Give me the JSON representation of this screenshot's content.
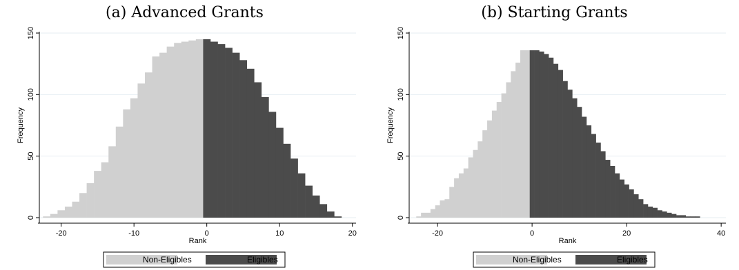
{
  "panels": [
    {
      "title": "(a) Advanced Grants",
      "chart_data": {
        "type": "bar",
        "title": "(a) Advanced Grants",
        "xlabel": "Rank",
        "ylabel": "Frequency",
        "xlim": [
          -23,
          20.5
        ],
        "ylim": [
          0,
          150
        ],
        "xticks": [
          -20,
          -10,
          0,
          10,
          20
        ],
        "yticks": [
          0,
          50,
          100,
          150
        ],
        "grid": true,
        "legend": "bottom",
        "bin_start": -22,
        "bin_width": 1,
        "split_at": 0,
        "series": [
          {
            "name": "Non-Eligibles",
            "color": "#d0d0d0",
            "x": [
              -22,
              -21,
              -20,
              -19,
              -18,
              -17,
              -16,
              -15,
              -14,
              -13,
              -12,
              -11,
              -10,
              -9,
              -8,
              -7,
              -6,
              -5,
              -4,
              -3,
              -2,
              -1
            ],
            "values": [
              1,
              3,
              6,
              9,
              13,
              20,
              28,
              38,
              45,
              58,
              74,
              88,
              97,
              109,
              118,
              131,
              134,
              139,
              142,
              143,
              144,
              145
            ]
          },
          {
            "name": "Eligibles",
            "color": "#4b4b4b",
            "x": [
              0,
              1,
              2,
              3,
              4,
              5,
              6,
              7,
              8,
              9,
              10,
              11,
              12,
              13,
              14,
              15,
              16,
              17,
              18
            ],
            "values": [
              145,
              143,
              141,
              138,
              134,
              128,
              121,
              110,
              98,
              86,
              73,
              60,
              48,
              36,
              26,
              18,
              11,
              5,
              1
            ]
          }
        ]
      }
    },
    {
      "title": "(b) Starting Grants",
      "chart_data": {
        "type": "bar",
        "title": "(b) Starting Grants",
        "xlabel": "Rank",
        "ylabel": "Frequency",
        "xlim": [
          -26,
          41
        ],
        "ylim": [
          0,
          150
        ],
        "xticks": [
          -20,
          0,
          20,
          40
        ],
        "yticks": [
          0,
          50,
          100,
          150
        ],
        "grid": true,
        "legend": "bottom",
        "bin_start": -24,
        "bin_width": 1,
        "split_at": 0,
        "series": [
          {
            "name": "Non-Eligibles",
            "color": "#d0d0d0",
            "x": [
              -24,
              -23,
              -22,
              -21,
              -20,
              -19,
              -18,
              -17,
              -16,
              -15,
              -14,
              -13,
              -12,
              -11,
              -10,
              -9,
              -8,
              -7,
              -6,
              -5,
              -4,
              -3,
              -2,
              -1
            ],
            "values": [
              1,
              4,
              4,
              7,
              10,
              14,
              15,
              25,
              32,
              36,
              40,
              49,
              55,
              62,
              71,
              79,
              87,
              94,
              101,
              110,
              119,
              126,
              136,
              136
            ]
          },
          {
            "name": "Eligibles",
            "color": "#4b4b4b",
            "x": [
              0,
              1,
              2,
              3,
              4,
              5,
              6,
              7,
              8,
              9,
              10,
              11,
              12,
              13,
              14,
              15,
              16,
              17,
              18,
              19,
              20,
              21,
              22,
              23,
              24,
              25,
              26,
              27,
              28,
              29,
              30,
              31,
              32,
              33,
              34,
              35
            ],
            "values": [
              136,
              136,
              135,
              133,
              130,
              125,
              120,
              111,
              104,
              97,
              90,
              82,
              75,
              68,
              61,
              54,
              47,
              42,
              36,
              31,
              27,
              23,
              19,
              15,
              11,
              9,
              8,
              6,
              5,
              4,
              3,
              2,
              2,
              1,
              1,
              1
            ]
          }
        ]
      }
    }
  ]
}
